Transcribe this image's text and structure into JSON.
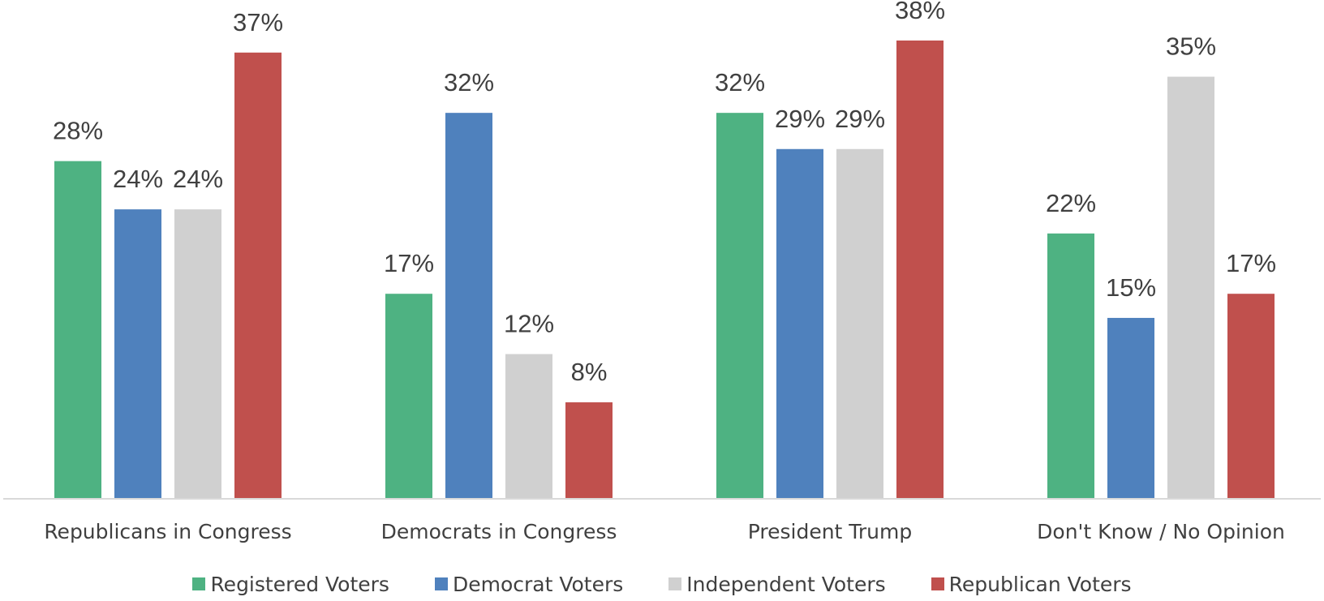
{
  "chart_data": {
    "type": "bar",
    "categories": [
      "Republicans in Congress",
      "Democrats in Congress",
      "President Trump",
      "Don't Know / No Opinion"
    ],
    "series": [
      {
        "name": "Registered Voters",
        "color": "#4EB282",
        "values": [
          28,
          17,
          32,
          22
        ],
        "labels": [
          "28%",
          "17%",
          "32%",
          "22%"
        ]
      },
      {
        "name": "Democrat Voters",
        "color": "#4F81BD",
        "values": [
          24,
          32,
          29,
          15
        ],
        "labels": [
          "24%",
          "32%",
          "29%",
          "15%"
        ]
      },
      {
        "name": "Independent Voters",
        "color": "#D0D0D0",
        "values": [
          24,
          12,
          29,
          35
        ],
        "labels": [
          "24%",
          "12%",
          "29%",
          "35%"
        ]
      },
      {
        "name": "Republican Voters",
        "color": "#C0504D",
        "values": [
          37,
          8,
          38,
          17
        ],
        "labels": [
          "37%",
          "8%",
          "38%",
          "17%"
        ]
      }
    ],
    "ylim": [
      0,
      40
    ],
    "grid": false,
    "legend_position": "bottom",
    "title": "",
    "xlabel": "",
    "ylabel": ""
  }
}
